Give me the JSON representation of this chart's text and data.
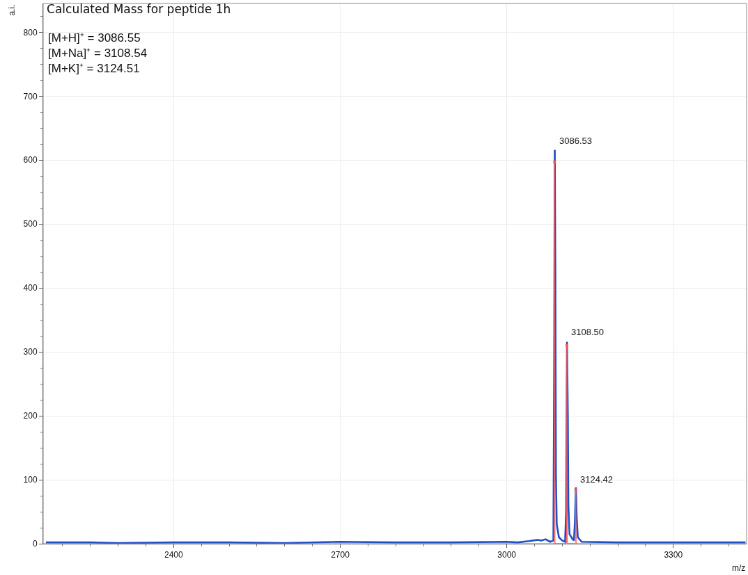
{
  "chart_data": {
    "type": "line",
    "title": "Calculated Mass for peptide 1h",
    "xlabel": "m/z",
    "ylabel": "a.i.",
    "annotations": [
      "[M+H]⁺ = 3086.55",
      "[M+Na]⁺ = 3108.54",
      "[M+K]⁺ = 3124.51",
      {
        "text": "3086.53",
        "x": 3086.53,
        "y": 616
      },
      {
        "text": "3108.50",
        "x": 3108.5,
        "y": 316
      },
      {
        "text": "3124.42",
        "x": 3124.42,
        "y": 86
      }
    ],
    "series": [
      {
        "color": "#1f4fc4",
        "x": [
          2170,
          2250,
          2300,
          2400,
          2500,
          2600,
          2700,
          2800,
          2900,
          3000,
          3020,
          3040,
          3055,
          3062,
          3070,
          3078,
          3084,
          3085.5,
          3086.5,
          3087.5,
          3088.5,
          3090,
          3094,
          3100,
          3105,
          3107,
          3108.5,
          3110,
          3111,
          3113,
          3118,
          3121,
          3123,
          3124.5,
          3126,
          3128,
          3135,
          3200,
          3300,
          3430
        ],
        "values": [
          2,
          2,
          1,
          2,
          2,
          1,
          3,
          2,
          2,
          3,
          2,
          4,
          6,
          5,
          7,
          3,
          5,
          300,
          616,
          430,
          110,
          30,
          10,
          5,
          3,
          50,
          316,
          200,
          60,
          15,
          8,
          5,
          40,
          88,
          40,
          10,
          3,
          2,
          2,
          2
        ]
      },
      {
        "type": "line",
        "color": "#ff5a5a",
        "marker": "none",
        "x": [
          3084,
          3085.6,
          3086.2,
          3086.9,
          3088,
          3106.5,
          3107.7,
          3108.3,
          3109,
          3110,
          3122.5,
          3123.6,
          3124.3,
          3125,
          3126
        ],
        "values": [
          0,
          2,
          597,
          2,
          0,
          0,
          2,
          310,
          2,
          0,
          0,
          2,
          84,
          2,
          0
        ]
      },
      {
        "type": "scatter",
        "color": "#ff5a5a",
        "marker": "square",
        "x": [
          3086.2,
          3108.3,
          3124.3
        ],
        "values": [
          597,
          310,
          84
        ]
      }
    ],
    "xlim": [
      2165,
      3432
    ],
    "xticks": [
      2400,
      2700,
      3000,
      3300
    ],
    "ylim": [
      0,
      845
    ],
    "yticks": [
      0,
      100,
      200,
      300,
      400,
      500,
      600,
      700,
      800
    ],
    "grid": true,
    "marker": "none",
    "line_style": "solid"
  }
}
